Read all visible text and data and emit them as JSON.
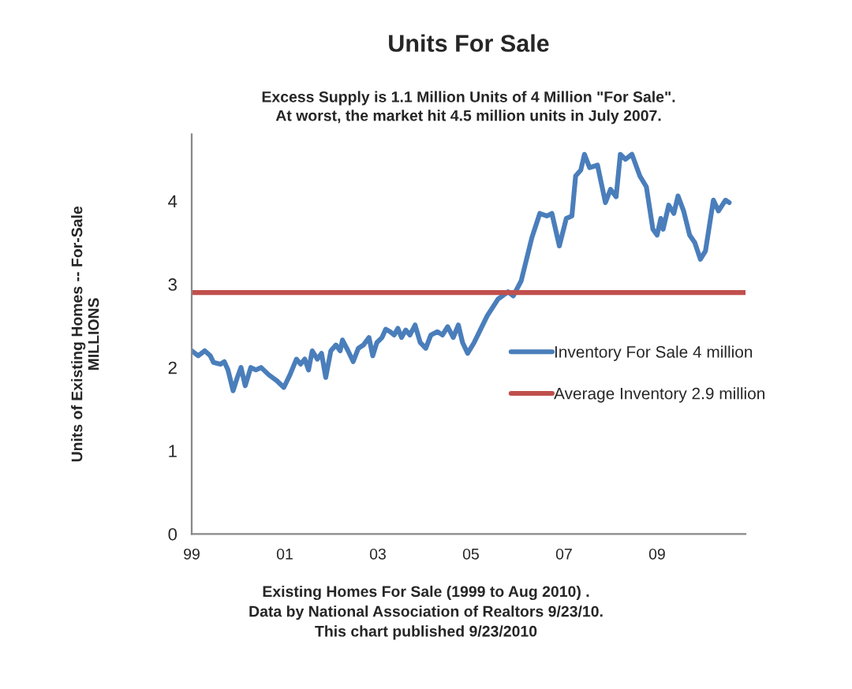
{
  "chart_data": {
    "type": "line",
    "title": "Units For Sale",
    "subtitle": "Excess Supply is 1.1 Million Units of 4 Million \"For Sale\".\nAt worst, the market hit 4.5 million units in July 2007.",
    "ylabel": "Units of Existing Homes -- For-Sale\nMILLIONS",
    "annotations": [
      "Existing Homes For Sale (1999 to Aug 2010) .\nData by National Association of Realtors 9/23/10.\nThis chart published 9/23/2010"
    ],
    "series": [
      {
        "name": "Inventory For Sale 4 million",
        "color": "#4a7ebb",
        "x": [
          1999.0,
          1999.14,
          1999.28,
          1999.4,
          1999.47,
          1999.62,
          1999.7,
          1999.78,
          1999.89,
          1999.98,
          2000.06,
          2000.15,
          2000.27,
          2000.38,
          2000.49,
          2000.66,
          2000.83,
          2000.98,
          2001.11,
          2001.25,
          2001.34,
          2001.43,
          2001.51,
          2001.59,
          2001.7,
          2001.79,
          2001.88,
          2001.99,
          2002.1,
          2002.19,
          2002.24,
          2002.36,
          2002.47,
          2002.58,
          2002.69,
          2002.81,
          2002.89,
          2002.98,
          2003.09,
          2003.17,
          2003.26,
          2003.35,
          2003.43,
          2003.51,
          2003.6,
          2003.69,
          2003.8,
          2003.91,
          2004.03,
          2004.14,
          2004.28,
          2004.39,
          2004.5,
          2004.62,
          2004.73,
          2004.82,
          2004.93,
          2005.07,
          2005.35,
          2005.58,
          2005.8,
          2005.91,
          2006.08,
          2006.31,
          2006.48,
          2006.63,
          2006.74,
          2006.9,
          2007.05,
          2007.17,
          2007.25,
          2007.36,
          2007.44,
          2007.55,
          2007.72,
          2007.89,
          2008.0,
          2008.12,
          2008.21,
          2008.32,
          2008.46,
          2008.63,
          2008.77,
          2008.91,
          2009.0,
          2009.08,
          2009.13,
          2009.25,
          2009.36,
          2009.45,
          2009.57,
          2009.7,
          2009.81,
          2009.93,
          2010.04,
          2010.21,
          2010.32,
          2010.47,
          2010.55
        ],
        "values": [
          2.2,
          2.14,
          2.2,
          2.14,
          2.06,
          2.04,
          2.07,
          1.97,
          1.72,
          1.88,
          2.0,
          1.78,
          2.0,
          1.97,
          2.0,
          1.91,
          1.84,
          1.76,
          1.91,
          2.1,
          2.04,
          2.1,
          1.97,
          2.2,
          2.1,
          2.17,
          1.88,
          2.2,
          2.27,
          2.2,
          2.33,
          2.2,
          2.07,
          2.23,
          2.27,
          2.36,
          2.14,
          2.3,
          2.36,
          2.46,
          2.43,
          2.39,
          2.47,
          2.36,
          2.45,
          2.39,
          2.51,
          2.3,
          2.23,
          2.39,
          2.43,
          2.39,
          2.49,
          2.36,
          2.51,
          2.3,
          2.17,
          2.3,
          2.62,
          2.82,
          2.91,
          2.86,
          3.04,
          3.56,
          3.85,
          3.82,
          3.85,
          3.46,
          3.79,
          3.82,
          4.3,
          4.37,
          4.56,
          4.4,
          4.43,
          3.98,
          4.14,
          4.05,
          4.56,
          4.5,
          4.56,
          4.3,
          4.17,
          3.66,
          3.59,
          3.79,
          3.66,
          3.95,
          3.85,
          4.06,
          3.88,
          3.59,
          3.5,
          3.3,
          3.4,
          4.01,
          3.88,
          4.01,
          3.98
        ]
      }
    ],
    "ref_lines": [
      {
        "axis": "y",
        "value": 2.9,
        "label": "Average Inventory 2.9 million",
        "color": "#c0504d"
      }
    ],
    "xlim": [
      1999,
      2010.9
    ],
    "xticks": [
      {
        "value": 1999,
        "label": "99"
      },
      {
        "value": 2001,
        "label": "01"
      },
      {
        "value": 2003,
        "label": "03"
      },
      {
        "value": 2005,
        "label": "05"
      },
      {
        "value": 2007,
        "label": "07"
      },
      {
        "value": 2009,
        "label": "09"
      }
    ],
    "ylim": [
      0,
      4.8
    ],
    "yticks": [
      0,
      1,
      2,
      3,
      4
    ],
    "grid": false,
    "legend": "right",
    "marker": "none",
    "line_style": "solid"
  }
}
